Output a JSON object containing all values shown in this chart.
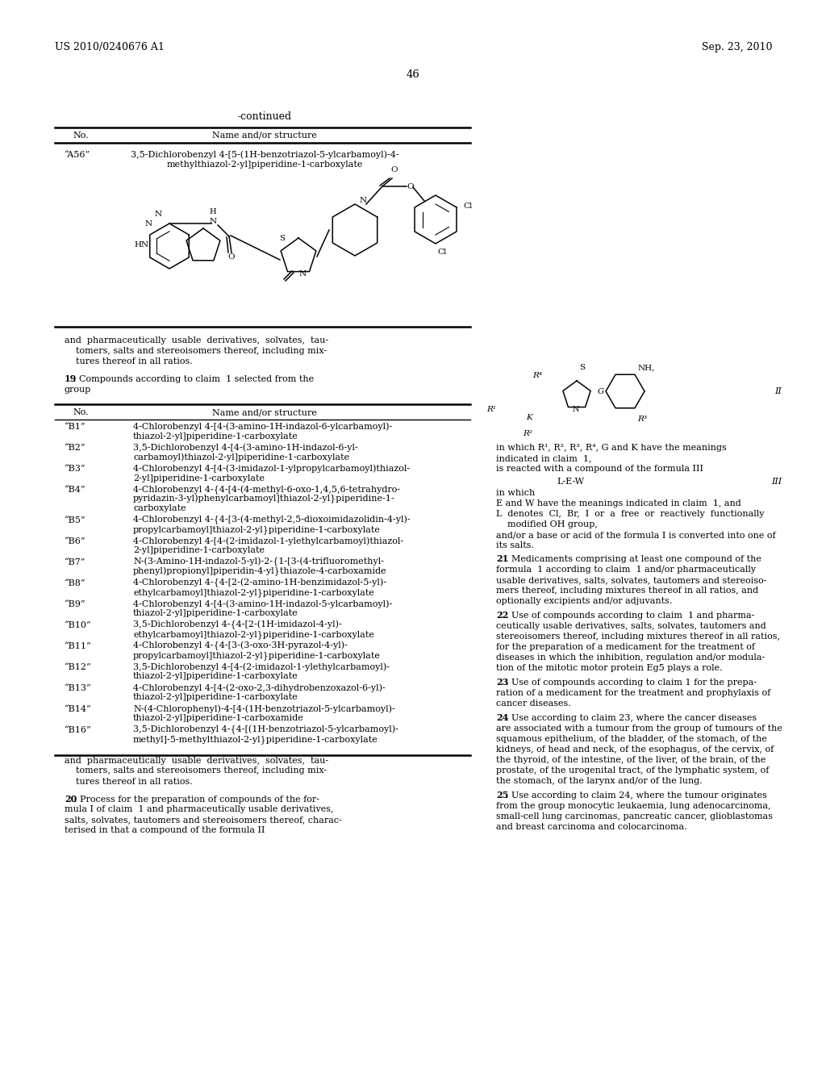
{
  "header_left": "US 2010/0240676 A1",
  "header_right": "Sep. 23, 2010",
  "page_number": "46",
  "table_continued": "-continued",
  "table_col1": "No.",
  "table_col2": "Name and/or structure",
  "entry_no": "“A56”",
  "entry_name_line1": "3,5-Dichlorobenzyl 4-[5-(1H-benzotriazol-5-ylcarbamoyl)-4-",
  "entry_name_line2": "methylthiazol-2-yl]piperidine-1-carboxylate",
  "para_and": "and  pharmaceutically  usable  derivatives,  solvates,  tau-",
  "para_and2": "    tomers, salts and stereoisomers thereof, including mix-",
  "para_and3": "    tures thereof in all ratios.",
  "claim19_num": "19",
  "claim19_text": ". Compounds according to claim  1 selected from the",
  "claim19_text2": "group",
  "table2_entries": [
    [
      "“B1”",
      "4-Chlorobenzyl 4-[4-(3-amino-1H-indazol-6-ylcarbamoyl)-",
      "thiazol-2-yl]piperidine-1-carboxylate"
    ],
    [
      "“B2”",
      "3,5-Dichlorobenzyl 4-[4-(3-amino-1H-indazol-6-yl-",
      "carbamoyl)thiazol-2-yl]piperidine-1-carboxylate"
    ],
    [
      "“B3”",
      "4-Chlorobenzyl 4-[4-(3-imidazol-1-ylpropylcarbamoyl)thiazol-",
      "2-yl]piperidine-1-carboxylate"
    ],
    [
      "“B4”",
      "4-Chlorobenzyl 4-{4-[4-(4-methyl-6-oxo-1,4,5,6-tetrahydro-",
      "pyridazin-3-yl)phenylcarbamoyl]thiazol-2-yl}piperidine-1-",
      "carboxylate"
    ],
    [
      "“B5”",
      "4-Chlorobenzyl 4-{4-[3-(4-methyl-2,5-dioxoimidazolidin-4-yl)-",
      "propylcarbamoyl]thiazol-2-yl}piperidine-1-carboxylate"
    ],
    [
      "“B6”",
      "4-Chlorobenzyl 4-[4-(2-imidazol-1-ylethylcarbamoyl)thiazol-",
      "2-yl]piperidine-1-carboxylate"
    ],
    [
      "“B7”",
      "N-(3-Amino-1H-indazol-5-yl)-2-{1-[3-(4-trifluoromethyl-",
      "phenyl)propionyl]piperidin-4-yl}thiazole-4-carboxamide"
    ],
    [
      "“B8”",
      "4-Chlorobenzyl 4-{4-[2-(2-amino-1H-benzimidazol-5-yl)-",
      "ethylcarbamoyl]thiazol-2-yl}piperidine-1-carboxylate"
    ],
    [
      "“B9”",
      "4-Chlorobenzyl 4-[4-(3-amino-1H-indazol-5-ylcarbamoyl)-",
      "thiazol-2-yl]piperidine-1-carboxylate"
    ],
    [
      "“B10”",
      "3,5-Dichlorobenzyl 4-{4-[2-(1H-imidazol-4-yl)-",
      "ethylcarbamoyl]thiazol-2-yl}piperidine-1-carboxylate"
    ],
    [
      "“B11”",
      "4-Chlorobenzyl 4-{4-[3-(3-oxo-3H-pyrazol-4-yl)-",
      "propylcarbamoyl]thiazol-2-yl}piperidine-1-carboxylate"
    ],
    [
      "“B12”",
      "3,5-Dichlorobenzyl 4-[4-(2-imidazol-1-ylethylcarbamoyl)-",
      "thiazol-2-yl]piperidine-1-carboxylate"
    ],
    [
      "“B13”",
      "4-Chlorobenzyl 4-[4-(2-oxo-2,3-dihydrobenzoxazol-6-yl)-",
      "thiazol-2-yl]piperidine-1-carboxylate"
    ],
    [
      "“B14”",
      "N-(4-Chlorophenyl)-4-[4-(1H-benzotriazol-5-ylcarbamoyl)-",
      "thiazol-2-yl]piperidine-1-carboxamide"
    ],
    [
      "“B16”",
      "3,5-Dichlorobenzyl 4-{4-[(1H-benzotriazol-5-ylcarbamoyl)-",
      "methyl]-5-methylthiazol-2-yl}piperidine-1-carboxylate"
    ]
  ],
  "para_and_b": "and  pharmaceutically  usable  derivatives,  solvates,  tau-",
  "para_and_b2": "    tomers, salts and stereoisomers thereof, including mix-",
  "para_and_b3": "    tures thereof in all ratios.",
  "claim20_num": "20",
  "claim20_text": ". Process for the preparation of compounds of the for-",
  "claim20_line2": "mula I of claim  1 and pharmaceutically usable derivatives,",
  "claim20_line3": "salts, solvates, tautomers and stereoisomers thereof, charac-",
  "claim20_line4": "terised in that a compound of the formula II",
  "right_col_II": "II",
  "right_col_inwhich1": "in which R¹, R², R³, R⁴, G and K have the meanings",
  "right_col_inwhich2": "indicated in claim  1,",
  "right_col_react": "is reacted with a compound of the formula III",
  "right_col_LEW": "L-E-W",
  "right_col_III": "III",
  "right_col_inwhich": "in which",
  "right_col_EW": "E and W have the meanings indicated in claim  1, and",
  "right_col_L1": "L  denotes  Cl,  Br,  I  or  a  free  or  reactively  functionally",
  "right_col_L2": "    modified OH group,",
  "right_col_andor": "and/or a base or acid of the formula I is converted into one of",
  "right_col_salts": "its salts.",
  "claim21_num": "21",
  "claim21_text": ". Medicaments comprising at least one compound of the",
  "claim21_line2": "formula  1 according to claim  1 and/or pharmaceutically",
  "claim21_line3": "usable derivatives, salts, solvates, tautomers and stereoiso-",
  "claim21_line4": "mers thereof, including mixtures thereof in all ratios, and",
  "claim21_line5": "optionally excipients and/or adjuvants.",
  "claim22_num": "22",
  "claim22_text": ". Use of compounds according to claim  1 and pharma-",
  "claim22_line2": "ceutically usable derivatives, salts, solvates, tautomers and",
  "claim22_line3": "stereoisomers thereof, including mixtures thereof in all ratios,",
  "claim22_line4": "for the preparation of a medicament for the treatment of",
  "claim22_line5": "diseases in which the inhibition, regulation and/or modula-",
  "claim22_line6": "tion of the mitotic motor protein Eg5 plays a role.",
  "claim23_num": "23",
  "claim23_text": ". Use of compounds according to claim 1 for the prepa-",
  "claim23_line2": "ration of a medicament for the treatment and prophylaxis of",
  "claim23_line3": "cancer diseases.",
  "claim24_num": "24",
  "claim24_text": ". Use according to claim 23, where the cancer diseases",
  "claim24_line2": "are associated with a tumour from the group of tumours of the",
  "claim24_line3": "squamous epithelium, of the bladder, of the stomach, of the",
  "claim24_line4": "kidneys, of head and neck, of the esophagus, of the cervix, of",
  "claim24_line5": "the thyroid, of the intestine, of the liver, of the brain, of the",
  "claim24_line6": "prostate, of the urogenital tract, of the lymphatic system, of",
  "claim24_line7": "the stomach, of the larynx and/or of the lung.",
  "claim25_num": "25",
  "claim25_text": ". Use according to claim 24, where the tumour originates",
  "claim25_line2": "from the group monocytic leukaemia, lung adenocarcinoma,",
  "claim25_line3": "small-cell lung carcinomas, pancreatic cancer, glioblastomas",
  "claim25_line4": "and breast carcinoma and colocarcinoma.",
  "bg_color": "#ffffff",
  "text_color": "#000000"
}
